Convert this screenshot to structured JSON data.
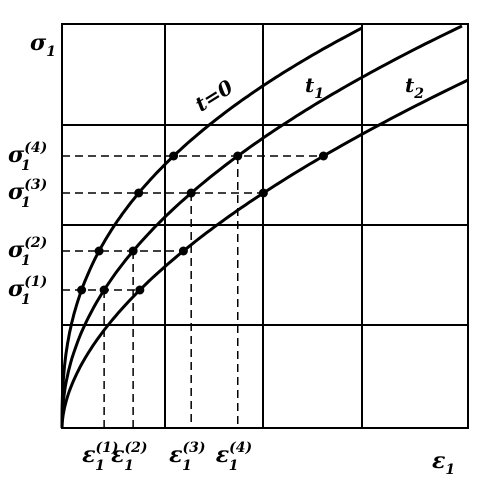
{
  "y_axis_label": {
    "symbol": "σ",
    "index": "1"
  },
  "x_axis_label": {
    "symbol": "ε",
    "index": "1"
  },
  "curves": [
    {
      "label": "t=0"
    },
    {
      "label": "t",
      "index": "1"
    },
    {
      "label": "t",
      "index": "2"
    }
  ],
  "y_levels": [
    {
      "symbol": "σ",
      "index": "1",
      "sup": "(1)"
    },
    {
      "symbol": "σ",
      "index": "1",
      "sup": "(2)"
    },
    {
      "symbol": "σ",
      "index": "1",
      "sup": "(3)"
    },
    {
      "symbol": "σ",
      "index": "1",
      "sup": "(4)"
    }
  ],
  "x_levels": [
    {
      "symbol": "ε",
      "index": "1",
      "sup": "(1)"
    },
    {
      "symbol": "ε",
      "index": "1",
      "sup": "(2)"
    },
    {
      "symbol": "ε",
      "index": "1",
      "sup": "(3)"
    },
    {
      "symbol": "ε",
      "index": "1",
      "sup": "(4)"
    }
  ]
}
